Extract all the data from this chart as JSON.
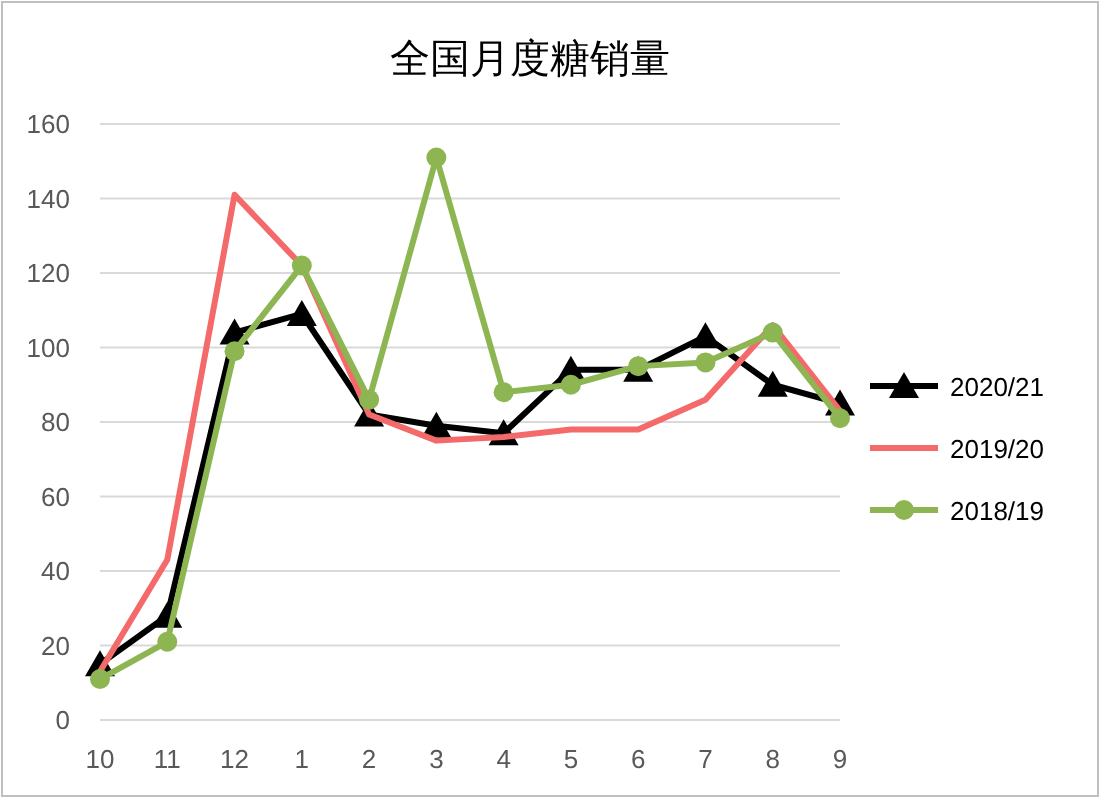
{
  "chart_data": {
    "type": "line",
    "title": "全国月度糖销量",
    "categories": [
      "10",
      "11",
      "12",
      "1",
      "2",
      "3",
      "4",
      "5",
      "6",
      "7",
      "8",
      "9"
    ],
    "series": [
      {
        "name": "2020/21",
        "color": "#000000",
        "marker": "triangle",
        "values": [
          15,
          28,
          104,
          109,
          82,
          79,
          77,
          94,
          94,
          103,
          90,
          85
        ]
      },
      {
        "name": "2019/20",
        "color": "#f46a6a",
        "marker": "none",
        "values": [
          13,
          43,
          141,
          122,
          82,
          75,
          76,
          78,
          78,
          86,
          106,
          83
        ]
      },
      {
        "name": "2018/19",
        "color": "#8db653",
        "marker": "circle",
        "values": [
          11,
          21,
          99,
          122,
          86,
          151,
          88,
          90,
          95,
          96,
          104,
          81
        ]
      }
    ],
    "ylim": [
      0,
      160
    ],
    "yticks": [
      0,
      20,
      40,
      60,
      80,
      100,
      120,
      140,
      160
    ],
    "grid": "y",
    "legend": "right"
  }
}
